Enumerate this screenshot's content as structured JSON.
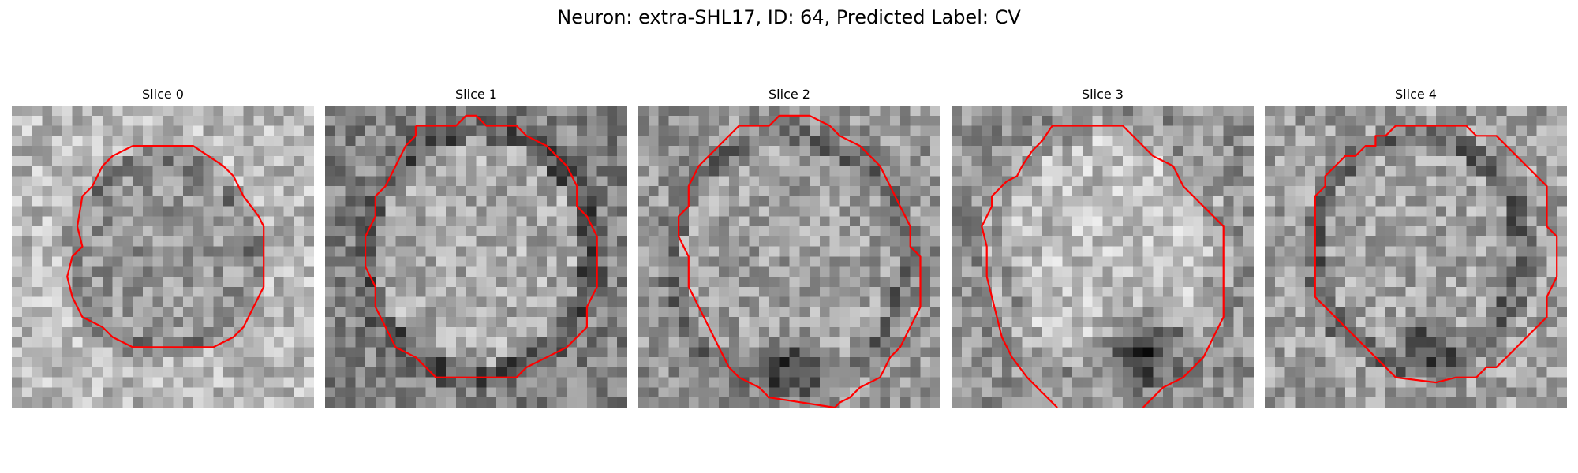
{
  "figure": {
    "title": "Neuron: extra-SHL17, ID: 64, Predicted Label: CV"
  },
  "panels": [
    {
      "title": "Slice 0"
    },
    {
      "title": "Slice 1"
    },
    {
      "title": "Slice 2"
    },
    {
      "title": "Slice 3"
    },
    {
      "title": "Slice 4"
    }
  ],
  "colors": {
    "contour": "#ff0000",
    "colormap": "grayscale"
  }
}
